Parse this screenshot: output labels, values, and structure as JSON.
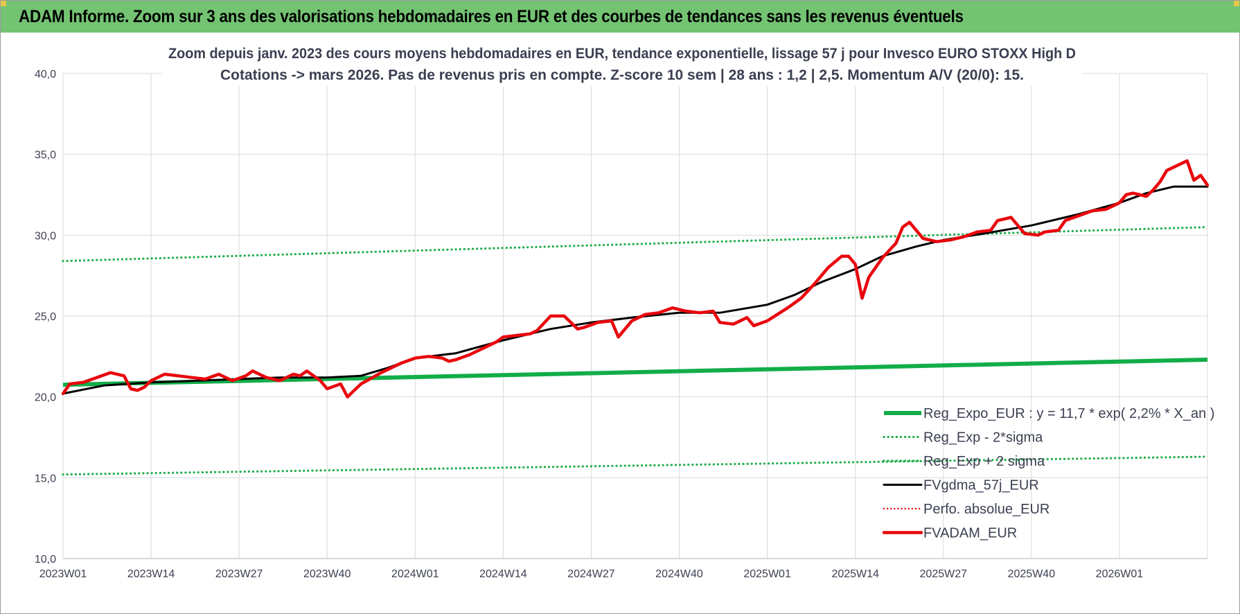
{
  "header": {
    "title": "ADAM Informe. Zoom sur 3 ans des valorisations hebdomadaires en EUR et des courbes de tendances sans les revenus éventuels"
  },
  "colors": {
    "banner": "#73c373",
    "reg_expo": "#12ad48",
    "sigma": "#1fae4c",
    "fvgdma": "#000000",
    "perfo": "#e0161b",
    "fvadam": "#e8070d",
    "grid": "#d9d9d9",
    "text": "#3b3f51"
  },
  "chart_data": {
    "type": "line",
    "title_lines": [
      "Zoom depuis janv. 2023 des cours moyens hebdomadaires en EUR, tendance exponentielle, lissage 57 j pour Invesco EURO STOXX High D",
      "Cotations -> mars 2026. Pas de revenus pris en compte. Z-score 10 sem | 28 ans : 1,2 | 2,5. Momentum A/V (20/0): 15."
    ],
    "ylim": [
      10,
      40
    ],
    "yticks": [
      "10,0",
      "15,0",
      "20,0",
      "25,0",
      "30,0",
      "35,0",
      "40,0"
    ],
    "ytick_values": [
      10,
      15,
      20,
      25,
      30,
      35,
      40
    ],
    "xlim": [
      0,
      169
    ],
    "xticks": [
      "2023W01",
      "2023W14",
      "2023W27",
      "2023W40",
      "2024W01",
      "2024W14",
      "2024W27",
      "2024W40",
      "2025W01",
      "2025W14",
      "2025W27",
      "2025W40",
      "2026W01"
    ],
    "xtick_positions": [
      0,
      13,
      26,
      39,
      52,
      65,
      78,
      91,
      104,
      117,
      130,
      143,
      156
    ],
    "grid": true,
    "legend_position": "bottom-right",
    "series": [
      {
        "name": "Reg_Expo_EUR : y = 11,7 * exp( 2,2% *  X_an )",
        "style": "thick",
        "x": [
          0,
          169
        ],
        "y": [
          20.75,
          22.3
        ]
      },
      {
        "name": "Reg_Exp - 2*sigma",
        "style": "dotted",
        "x": [
          0,
          169
        ],
        "y": [
          15.2,
          16.3
        ]
      },
      {
        "name": "Reg_Exp + 2 sigma",
        "style": "dotted",
        "x": [
          0,
          169
        ],
        "y": [
          28.4,
          30.5
        ]
      },
      {
        "name": "FVgdma_57j_EUR",
        "style": "solid",
        "x": [
          0,
          6,
          13,
          20,
          26,
          32,
          39,
          44,
          48,
          52,
          58,
          65,
          72,
          78,
          84,
          91,
          97,
          104,
          108,
          112,
          117,
          121,
          126,
          130,
          136,
          143,
          150,
          156,
          160,
          164,
          169
        ],
        "y": [
          20.2,
          20.7,
          20.9,
          21.0,
          21.1,
          21.2,
          21.2,
          21.3,
          21.8,
          22.4,
          22.7,
          23.5,
          24.2,
          24.6,
          24.9,
          25.2,
          25.2,
          25.7,
          26.3,
          27.1,
          27.9,
          28.7,
          29.3,
          29.7,
          30.1,
          30.6,
          31.3,
          32.0,
          32.6,
          33.0,
          33.0
        ]
      },
      {
        "name": "Perfo. absolue_EUR",
        "style": "dotted",
        "x": [],
        "y": []
      },
      {
        "name": "FVADAM_EUR",
        "style": "thick",
        "x": [
          0,
          1,
          3,
          5,
          7,
          9,
          10,
          11,
          12,
          13,
          15,
          17,
          19,
          21,
          23,
          25,
          27,
          28,
          30,
          32,
          34,
          35,
          36,
          38,
          39,
          41,
          42,
          44,
          47,
          50,
          52,
          54,
          56,
          57,
          58,
          60,
          62,
          64,
          65,
          67,
          69,
          70,
          72,
          74,
          76,
          77,
          79,
          81,
          82,
          84,
          86,
          88,
          90,
          92,
          94,
          96,
          97,
          99,
          101,
          102,
          104,
          107,
          109,
          111,
          113,
          115,
          116,
          117,
          118,
          119,
          121,
          123,
          124,
          125,
          127,
          129,
          131,
          133,
          135,
          137,
          138,
          140,
          141,
          142,
          144,
          145,
          147,
          148,
          150,
          152,
          154,
          156,
          157,
          158,
          160,
          161,
          162,
          163,
          164,
          166,
          167,
          168,
          169
        ],
        "y": [
          20.2,
          20.8,
          20.9,
          21.2,
          21.5,
          21.3,
          20.5,
          20.4,
          20.6,
          21.0,
          21.4,
          21.3,
          21.2,
          21.1,
          21.4,
          21.0,
          21.3,
          21.6,
          21.2,
          21.0,
          21.4,
          21.3,
          21.6,
          21.0,
          20.5,
          20.8,
          20.0,
          20.8,
          21.5,
          22.1,
          22.4,
          22.5,
          22.4,
          22.2,
          22.3,
          22.6,
          23.0,
          23.4,
          23.7,
          23.8,
          23.9,
          24.1,
          25.0,
          25.0,
          24.2,
          24.3,
          24.6,
          24.7,
          23.7,
          24.7,
          25.1,
          25.2,
          25.5,
          25.3,
          25.2,
          25.3,
          24.6,
          24.5,
          24.9,
          24.4,
          24.7,
          25.5,
          26.1,
          27.0,
          28.0,
          28.7,
          28.7,
          28.2,
          26.1,
          27.4,
          28.6,
          29.5,
          30.5,
          30.8,
          29.8,
          29.6,
          29.7,
          29.9,
          30.2,
          30.3,
          30.9,
          31.1,
          30.6,
          30.1,
          30.0,
          30.2,
          30.3,
          30.9,
          31.2,
          31.5,
          31.6,
          32.0,
          32.5,
          32.6,
          32.4,
          32.8,
          33.3,
          34.0,
          34.2,
          34.6,
          33.4,
          33.7,
          33.1
        ]
      }
    ]
  }
}
